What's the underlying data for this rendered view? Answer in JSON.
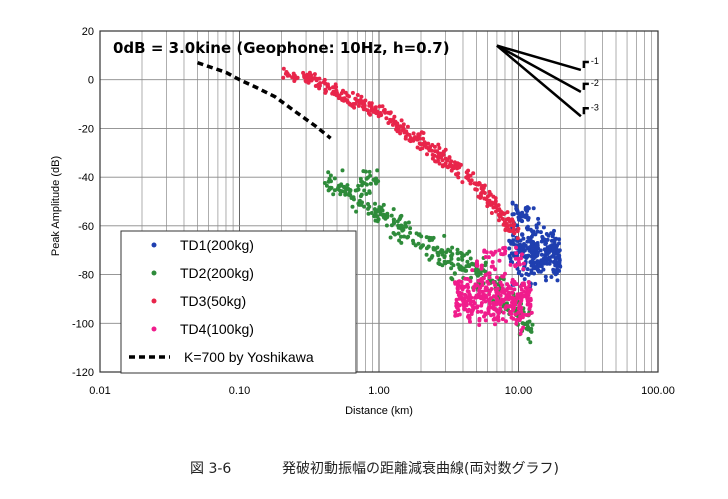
{
  "caption": {
    "number": "図 3-6",
    "text": "発破初動振幅の距離減衰曲線(両対数グラフ)"
  },
  "chart_data": {
    "type": "scatter",
    "xlabel": "Distance (km)",
    "ylabel": "Peak Amplitude (dB)",
    "x_scale": "log",
    "xlim": [
      0.01,
      100
    ],
    "ylim": [
      -120,
      20
    ],
    "x_ticks": [
      {
        "value": 0.01,
        "label": "0.01"
      },
      {
        "value": 0.1,
        "label": "0.10"
      },
      {
        "value": 1,
        "label": "1.00"
      },
      {
        "value": 10,
        "label": "10.00"
      },
      {
        "value": 100,
        "label": "100.00"
      }
    ],
    "y_ticks": [
      {
        "value": 20,
        "label": "20"
      },
      {
        "value": 0,
        "label": "0"
      },
      {
        "value": -20,
        "label": "-20"
      },
      {
        "value": -40,
        "label": "-40"
      },
      {
        "value": -60,
        "label": "-60"
      },
      {
        "value": -80,
        "label": "-80"
      },
      {
        "value": -100,
        "label": "-100"
      },
      {
        "value": -120,
        "label": "-120"
      }
    ],
    "grid": true,
    "annotation": "0dB = 3.0kine (Geophone: 10Hz, h=0.7)",
    "slope_labels": [
      "-1",
      "-2",
      "-3"
    ],
    "slope_lines": [
      {
        "label": "-1",
        "x": [
          7,
          28
        ],
        "y": [
          14,
          4
        ]
      },
      {
        "label": "-2",
        "x": [
          7,
          28
        ],
        "y": [
          14,
          -5
        ]
      },
      {
        "label": "-3",
        "x": [
          7,
          28
        ],
        "y": [
          14,
          -15
        ]
      }
    ],
    "legend_position": "lower-left",
    "series": [
      {
        "name": "TD1(200kg)",
        "color": "#1f3fb0",
        "marker": "dot",
        "clusters": [
          {
            "x": [
              8.5,
              14
            ],
            "y": [
              -88,
              -50
            ],
            "n": 120
          },
          {
            "x": [
              12,
              20
            ],
            "y": [
              -85,
              -60
            ],
            "n": 170
          },
          {
            "x": [
              9,
              12
            ],
            "y": [
              -62,
              -48
            ],
            "n": 30
          }
        ]
      },
      {
        "name": "TD2(200kg)",
        "color": "#2e8b3a",
        "marker": "dot",
        "trend": {
          "x": [
            0.4,
            1.5,
            3,
            6,
            10,
            13
          ],
          "y": [
            -40,
            -62,
            -72,
            -82,
            -95,
            -105
          ]
        },
        "spread": 6,
        "n": 320,
        "extra": [
          {
            "x": [
              0.4,
              1.0
            ],
            "y": [
              -50,
              -35
            ],
            "n": 40
          }
        ]
      },
      {
        "name": "TD3(50kg)",
        "color": "#e8254a",
        "marker": "dot",
        "trend": {
          "x": [
            0.2,
            0.35,
            0.6,
            1.0,
            1.6,
            2.5,
            4,
            6,
            8,
            10
          ],
          "y": [
            3,
            0,
            -8,
            -13,
            -22,
            -30,
            -38,
            -48,
            -58,
            -63
          ]
        },
        "spread": 3.5,
        "n": 380
      },
      {
        "name": "TD4(100kg)",
        "color": "#f01c8c",
        "marker": "dot",
        "clusters": [
          {
            "x": [
              3.5,
              12.5
            ],
            "y": [
              -105,
              -75
            ],
            "n": 330
          },
          {
            "x": [
              5,
              11
            ],
            "y": [
              -80,
              -66
            ],
            "n": 40
          }
        ]
      },
      {
        "name": "K=700 by Yoshikawa",
        "color": "#000000",
        "marker": "dashed-line",
        "x": [
          0.05,
          0.08,
          0.1,
          0.13,
          0.18,
          0.25,
          0.35,
          0.45
        ],
        "y": [
          7,
          3,
          0,
          -3,
          -7,
          -13,
          -19,
          -24
        ]
      }
    ]
  }
}
